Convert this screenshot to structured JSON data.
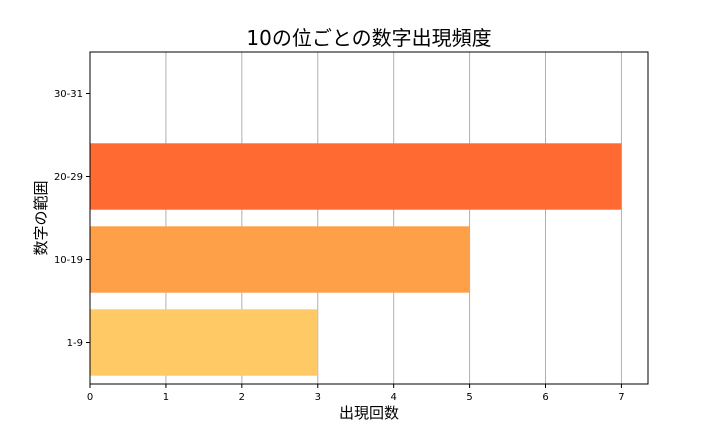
{
  "chart_data": {
    "type": "bar",
    "orientation": "horizontal",
    "title": "10の位ごとの数字出現頻度",
    "xlabel": "出現回数",
    "ylabel": "数字の範囲",
    "categories": [
      "1-9",
      "10-19",
      "20-29",
      "30-31"
    ],
    "values": [
      3,
      5,
      7,
      0
    ],
    "colors": [
      "#FFC966",
      "#FDA048",
      "#FF6A33",
      "#FF6A33"
    ],
    "xlim": [
      0,
      7.35
    ],
    "xticks": [
      0,
      1,
      2,
      3,
      4,
      5,
      6,
      7
    ],
    "grid": "vertical"
  }
}
